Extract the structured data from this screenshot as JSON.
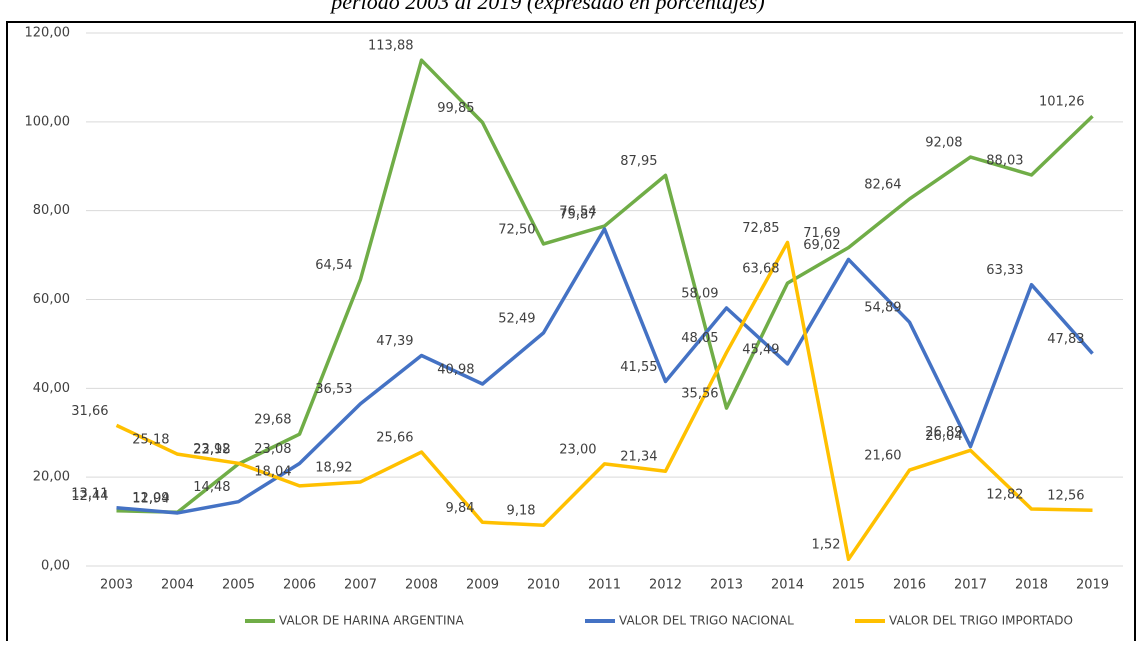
{
  "chart_data": {
    "type": "line",
    "title": "período 2003 al  2019 (expresado en porcentajes)",
    "categories": [
      "2003",
      "2004",
      "2005",
      "2006",
      "2007",
      "2008",
      "2009",
      "2010",
      "2011",
      "2012",
      "2013",
      "2014",
      "2015",
      "2016",
      "2017",
      "2018",
      "2019"
    ],
    "series": [
      {
        "name": "VALOR DE HARINA ARGENTINA",
        "color": "#70ad47",
        "values": [
          12.44,
          12.09,
          22.98,
          29.68,
          64.54,
          113.88,
          99.85,
          72.5,
          76.54,
          87.95,
          35.56,
          63.68,
          71.69,
          82.64,
          92.08,
          88.03,
          101.26
        ],
        "value_labels": [
          "12,44",
          "12,09",
          "22,98",
          "29,68",
          "64,54",
          "113,88",
          "99,85",
          "72,50",
          "76,54",
          "87,95",
          "35,56",
          "63,68",
          "71,69",
          "82,64",
          "92,08",
          "88,03",
          "101,26"
        ]
      },
      {
        "name": "VALOR DEL TRIGO NACIONAL",
        "color": "#4472c4",
        "values": [
          13.11,
          11.94,
          14.48,
          23.08,
          36.53,
          47.39,
          40.98,
          52.49,
          75.87,
          41.55,
          58.09,
          45.49,
          69.02,
          54.89,
          26.89,
          63.33,
          47.83
        ],
        "value_labels": [
          "13,11",
          "11,94",
          "14,48",
          "23,08",
          "36,53",
          "47,39",
          "40,98",
          "52,49",
          "75,87",
          "41,55",
          "58,09",
          "45,49",
          "69,02",
          "54,89",
          "26,89",
          "63,33",
          "47,83"
        ]
      },
      {
        "name": "VALOR DEL TRIGO IMPORTADO",
        "color": "#ffc000",
        "values": [
          31.66,
          25.18,
          23.12,
          18.04,
          18.92,
          25.66,
          9.84,
          9.18,
          23.0,
          21.34,
          48.05,
          72.85,
          1.52,
          21.6,
          26.04,
          12.82,
          12.56
        ],
        "value_labels": [
          "31,66",
          "25,18",
          "23,12",
          "18,04",
          "18,92",
          "25,66",
          "9,84",
          "9,18",
          "23,00",
          "21,34",
          "48,05",
          "72,85",
          "1,52",
          "21,60",
          "26,04",
          "12,82",
          "12,56"
        ]
      }
    ],
    "ylim": [
      0,
      120
    ],
    "yticks": [
      {
        "value": 0,
        "label": "0,00"
      },
      {
        "value": 20,
        "label": "20,00"
      },
      {
        "value": 40,
        "label": "40,00"
      },
      {
        "value": 60,
        "label": "60,00"
      },
      {
        "value": 80,
        "label": "80,00"
      },
      {
        "value": 100,
        "label": "100,00"
      },
      {
        "value": 120,
        "label": "120,00"
      }
    ],
    "grid": true,
    "legend": "bottom"
  }
}
